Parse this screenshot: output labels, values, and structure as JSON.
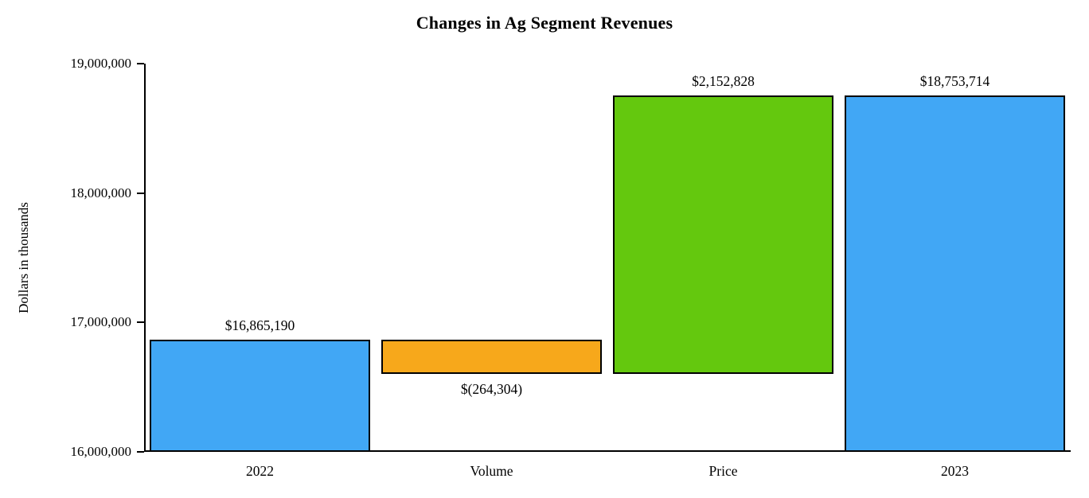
{
  "chart_data": {
    "type": "bar",
    "subtype": "waterfall",
    "title": "Changes in Ag Segment Revenues",
    "xlabel": "",
    "ylabel": "Dollars in thousands",
    "ylim": [
      16000000,
      19000000
    ],
    "yticks": [
      16000000,
      17000000,
      18000000,
      19000000
    ],
    "ytick_labels": [
      "16,000,000",
      "17,000,000",
      "18,000,000",
      "19,000,000"
    ],
    "grid": "off",
    "legend": "none",
    "categories": [
      "2022",
      "Volume",
      "Price",
      "2023"
    ],
    "bars": [
      {
        "category": "2022",
        "start": 16000000,
        "end": 16865190,
        "value": 16865190,
        "label": "$16,865,190",
        "label_position": "above",
        "color": "#41a7f5"
      },
      {
        "category": "Volume",
        "start": 16865190,
        "end": 16600886,
        "value": -264304,
        "label": "$(264,304)",
        "label_position": "below",
        "color": "#f7a81b"
      },
      {
        "category": "Price",
        "start": 16600886,
        "end": 18753714,
        "value": 2152828,
        "label": "$2,152,828",
        "label_position": "above",
        "color": "#64c80e"
      },
      {
        "category": "2023",
        "start": 16000000,
        "end": 18753714,
        "value": 18753714,
        "label": "$18,753,714",
        "label_position": "above",
        "color": "#41a7f5"
      }
    ],
    "colors": {
      "blue": "#41a7f5",
      "orange": "#f7a81b",
      "green": "#64c80e",
      "axis": "#000000",
      "background": "#ffffff"
    }
  }
}
